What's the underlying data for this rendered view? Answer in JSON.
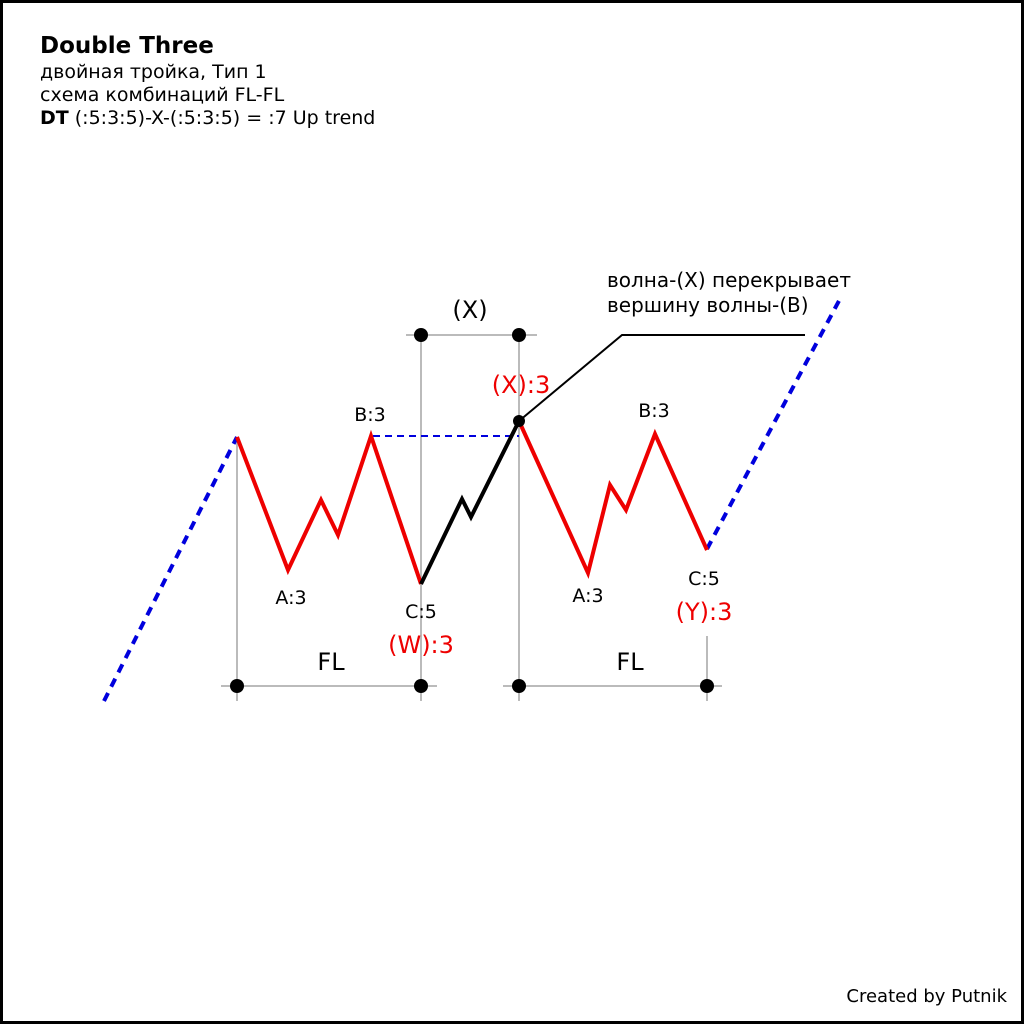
{
  "header": {
    "title": "Double Three",
    "subtitle": "двойная тройка, Тип 1",
    "scheme": "схема комбинаций FL-FL",
    "formula_bold": "DT",
    "formula_rest": " (:5:3:5)-X-(:5:3:5) = :7 Up trend"
  },
  "labels": {
    "x_bracket": "(X)",
    "x_wave": "(X):3",
    "left_a": "A:3",
    "left_b": "B:3",
    "left_c": "C:5",
    "w_wave": "(W):3",
    "right_a": "A:3",
    "right_b": "B:3",
    "right_c": "C:5",
    "y_wave": "(Y):3",
    "left_fl": "FL",
    "right_fl": "FL",
    "annotation_line1": "волна-(X) перекрывает",
    "annotation_line2": "вершину волны-(B)"
  },
  "credit": "Created by Putnik",
  "colors": {
    "wave": "#ee0000",
    "connector": "#000000",
    "trend": "#0000dd",
    "guide": "#bbbbbb",
    "label_red": "#ee0000"
  }
}
